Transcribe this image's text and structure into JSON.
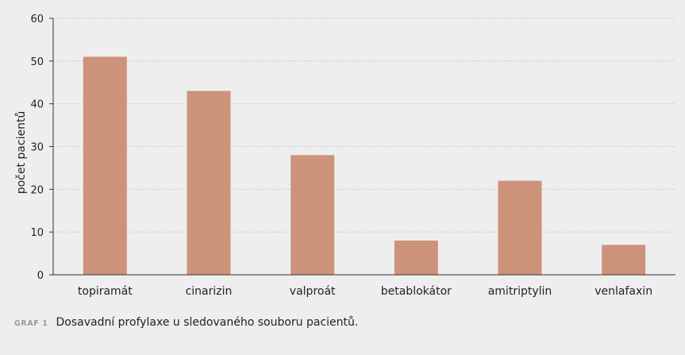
{
  "chart_data": {
    "type": "bar",
    "categories": [
      "topiramát",
      "cinarizin",
      "valproát",
      "betablokátor",
      "amitriptylin",
      "venlafaxin"
    ],
    "values": [
      51,
      43,
      28,
      8,
      22,
      7
    ],
    "ylabel": "počet pacientů",
    "xlabel": "",
    "ylim": [
      0,
      60
    ],
    "yticks": [
      0,
      10,
      20,
      30,
      40,
      50,
      60
    ],
    "grid": true,
    "bar_color": "#cd937a",
    "grid_color": "#c8c8c8",
    "background": "#eeeeee"
  },
  "caption": {
    "tag": "GRAF 1",
    "text": "Dosavadní profylaxe u sledovaného souboru pacientů."
  }
}
